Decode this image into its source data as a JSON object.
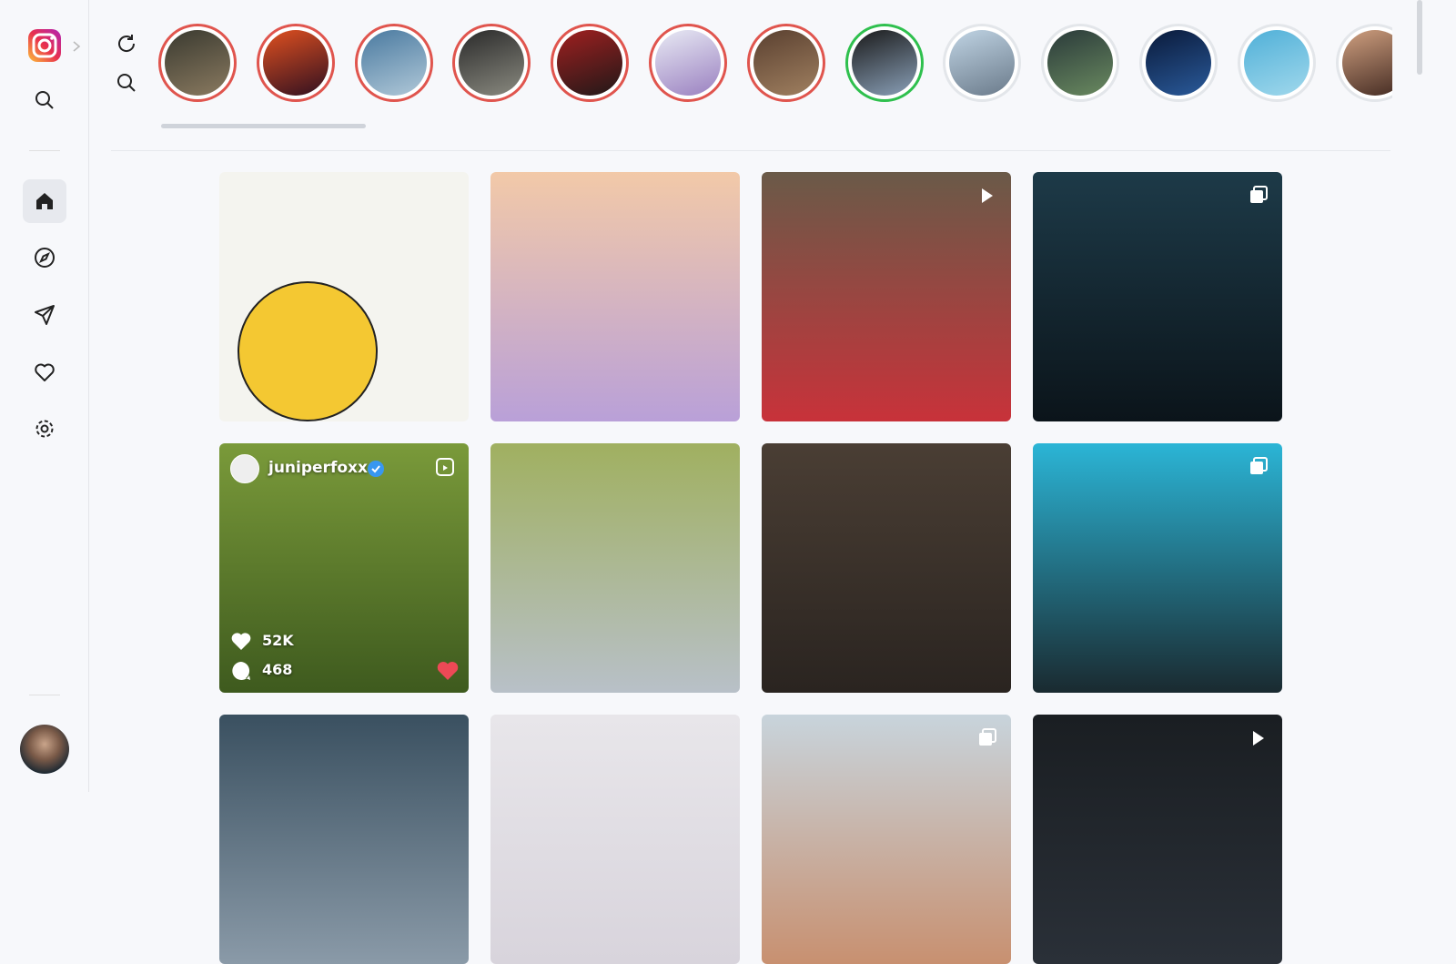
{
  "hovered_post": {
    "username": "juniperfoxx",
    "likes": "52K",
    "comments": "468"
  }
}
